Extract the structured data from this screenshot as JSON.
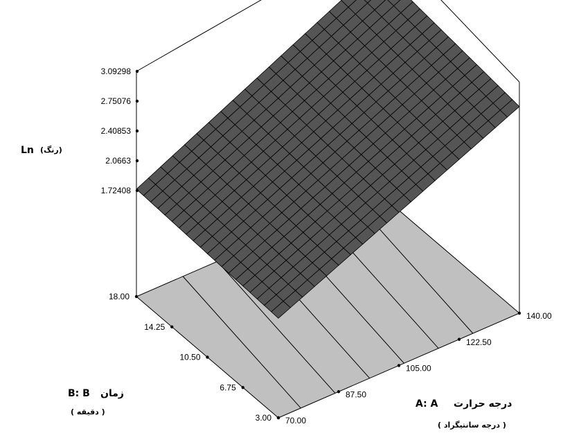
{
  "chart_data": {
    "type": "surface3d",
    "x_axis": {
      "label_code": "A: A",
      "label_name": "درجه حرارت",
      "units": "( درجه سانتیگراد )",
      "ticks": [
        "70.00",
        "87.50",
        "105.00",
        "122.50",
        "140.00"
      ],
      "range": [
        70,
        140
      ]
    },
    "y_axis": {
      "label_code": "B: B",
      "label_name": "زمان",
      "units": "( دقیقه )",
      "ticks": [
        "3.00",
        "6.75",
        "10.50",
        "14.25",
        "18.00"
      ],
      "range": [
        3,
        18
      ]
    },
    "z_axis": {
      "label_main": "Ln",
      "label_sub": "(رنگ)",
      "ticks": [
        "1.72408",
        "2.0663",
        "2.40853",
        "2.75076",
        "3.09298"
      ],
      "range": [
        1.72408,
        3.09298
      ]
    },
    "surface": {
      "corners": [
        {
          "A": 70,
          "B": 3,
          "z": 1.65
        },
        {
          "A": 140,
          "B": 3,
          "z": 2.88
        },
        {
          "A": 70,
          "B": 18,
          "z": 1.74
        },
        {
          "A": 140,
          "B": 18,
          "z": 3.09
        }
      ],
      "grid_divisions": 20,
      "color": "#555555",
      "grid_color": "#000000"
    },
    "floor_color": "#c0c0c0",
    "contour_count": 6
  }
}
